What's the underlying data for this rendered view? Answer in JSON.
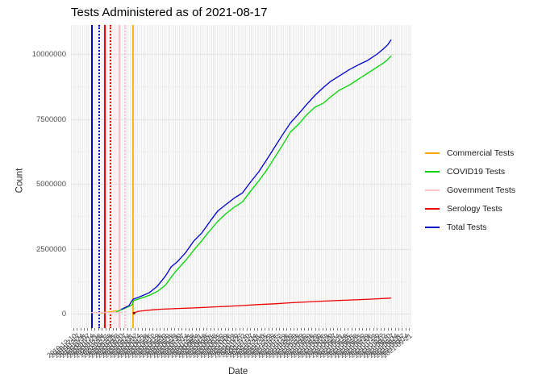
{
  "title": "Tests Administered as of 2021-08-17",
  "x_axis": {
    "label": "Date",
    "tick_labels": [
      "2019-12-10",
      "2019-12-17",
      "2019-12-24",
      "2019-12-31",
      "2020-01-07",
      "2020-01-14",
      "2020-01-21",
      "2020-01-28",
      "2020-02-04",
      "2020-02-11",
      "2020-02-18",
      "2020-02-25",
      "2020-03-03",
      "2020-03-10",
      "2020-03-17",
      "2020-03-24",
      "2020-03-31",
      "2020-04-07",
      "2020-04-14",
      "2020-04-21",
      "2020-04-28",
      "2020-05-05",
      "2020-05-12",
      "2020-05-19",
      "2020-05-26",
      "2020-06-02",
      "2020-06-09",
      "2020-06-16",
      "2020-06-23",
      "2020-06-30",
      "2020-07-07",
      "2020-07-14",
      "2020-07-21",
      "2020-07-28",
      "2020-08-04",
      "2020-08-11",
      "2020-08-18",
      "2020-08-25",
      "2020-09-01",
      "2020-09-08",
      "2020-09-15",
      "2020-09-22",
      "2020-09-29",
      "2020-10-06",
      "2020-10-13",
      "2020-10-20",
      "2020-10-27",
      "2020-11-03",
      "2020-11-10",
      "2020-11-17",
      "2020-11-24",
      "2020-12-01",
      "2020-12-08",
      "2020-12-15",
      "2020-12-22",
      "2020-12-29",
      "2021-01-05",
      "2021-01-12",
      "2021-01-19",
      "2021-01-26",
      "2021-02-02",
      "2021-02-09",
      "2021-02-16",
      "2021-02-23",
      "2021-03-02",
      "2021-03-09",
      "2021-03-16",
      "2021-03-23",
      "2021-03-30",
      "2021-04-06",
      "2021-04-13",
      "2021-04-20",
      "2021-04-27",
      "2021-05-04",
      "2021-05-11",
      "2021-05-18",
      "2021-05-25",
      "2021-06-01",
      "2021-06-08",
      "2021-06-15",
      "2021-06-22",
      "2021-06-29",
      "2021-07-06",
      "2021-07-13",
      "2021-07-20",
      "2021-07-27",
      "2021-08-03",
      "2021-08-10",
      "2021-08-17",
      "2021-08-24",
      "2021-08-31",
      "2021-09-07",
      "2021-09-14",
      "2021-09-21"
    ]
  },
  "y_axis": {
    "label": "Count",
    "tick_labels": [
      "0",
      "2500000",
      "5000000",
      "7500000",
      "10000000"
    ],
    "tick_values": [
      0,
      2500000,
      5000000,
      7500000,
      10000000
    ]
  },
  "legend": {
    "items": [
      {
        "label": "Commercial Tests",
        "color": "#FFA500"
      },
      {
        "label": "COVID19 Tests",
        "color": "#00D400"
      },
      {
        "label": "Government Tests",
        "color": "#FFC0CB"
      },
      {
        "label": "Serology Tests",
        "color": "#EE0000"
      },
      {
        "label": "Total Tests",
        "color": "#0000CD"
      }
    ]
  },
  "chart_data": {
    "type": "line",
    "title": "Tests Administered as of 2021-08-17",
    "xlabel": "Date",
    "ylabel": "Count",
    "x_domain": [
      "2019-12-06",
      "2021-09-25"
    ],
    "ylim": [
      0,
      11100000
    ],
    "grid": true,
    "legend_position": "right",
    "series": [
      {
        "name": "Commercial Tests",
        "color": "#FFA500",
        "points": [
          [
            "2020-02-02",
            20000
          ],
          [
            "2020-02-12",
            50000
          ],
          [
            "2020-02-22",
            80000
          ],
          [
            "2020-03-04",
            120000
          ]
        ]
      },
      {
        "name": "COVID19 Tests",
        "color": "#00D400",
        "points": [
          [
            "2020-03-01",
            50000
          ],
          [
            "2020-03-12",
            150000
          ],
          [
            "2020-03-22",
            230000
          ],
          [
            "2020-03-30",
            300000
          ],
          [
            "2020-04-03",
            350000
          ],
          [
            "2020-04-05",
            500000
          ],
          [
            "2020-04-20",
            600000
          ],
          [
            "2020-05-05",
            700000
          ],
          [
            "2020-05-21",
            850000
          ],
          [
            "2020-06-06",
            1100000
          ],
          [
            "2020-06-17",
            1400000
          ],
          [
            "2020-06-29",
            1700000
          ],
          [
            "2020-07-15",
            2050000
          ],
          [
            "2020-07-31",
            2450000
          ],
          [
            "2020-08-15",
            2800000
          ],
          [
            "2020-08-31",
            3200000
          ],
          [
            "2020-09-15",
            3550000
          ],
          [
            "2020-10-01",
            3850000
          ],
          [
            "2020-10-17",
            4100000
          ],
          [
            "2020-11-02",
            4300000
          ],
          [
            "2020-11-17",
            4700000
          ],
          [
            "2020-12-03",
            5100000
          ],
          [
            "2020-12-18",
            5500000
          ],
          [
            "2021-01-03",
            6000000
          ],
          [
            "2021-01-19",
            6500000
          ],
          [
            "2021-02-03",
            7000000
          ],
          [
            "2021-02-19",
            7300000
          ],
          [
            "2021-03-06",
            7650000
          ],
          [
            "2021-03-22",
            7950000
          ],
          [
            "2021-04-07",
            8100000
          ],
          [
            "2021-04-22",
            8350000
          ],
          [
            "2021-05-08",
            8600000
          ],
          [
            "2021-05-28",
            8800000
          ],
          [
            "2021-06-16",
            9050000
          ],
          [
            "2021-07-02",
            9250000
          ],
          [
            "2021-07-21",
            9500000
          ],
          [
            "2021-08-02",
            9650000
          ],
          [
            "2021-08-10",
            9780000
          ],
          [
            "2021-08-17",
            9930000
          ]
        ]
      },
      {
        "name": "Government Tests",
        "color": "#FFC0CB",
        "points": [
          [
            "2020-01-14",
            40000
          ],
          [
            "2020-03-15",
            50000
          ]
        ]
      },
      {
        "name": "Serology Tests",
        "color": "#EE0000",
        "points": [
          [
            "2020-04-06",
            20000
          ],
          [
            "2020-04-12",
            80000
          ],
          [
            "2020-04-28",
            120000
          ],
          [
            "2020-05-14",
            150000
          ],
          [
            "2020-05-29",
            170000
          ],
          [
            "2020-06-30",
            200000
          ],
          [
            "2020-08-01",
            220000
          ],
          [
            "2020-09-01",
            250000
          ],
          [
            "2020-10-02",
            280000
          ],
          [
            "2020-11-02",
            310000
          ],
          [
            "2020-12-04",
            350000
          ],
          [
            "2021-01-04",
            380000
          ],
          [
            "2021-02-04",
            420000
          ],
          [
            "2021-03-07",
            450000
          ],
          [
            "2021-04-07",
            480000
          ],
          [
            "2021-05-09",
            510000
          ],
          [
            "2021-06-09",
            530000
          ],
          [
            "2021-07-10",
            560000
          ],
          [
            "2021-08-17",
            600000
          ]
        ]
      },
      {
        "name": "Total Tests",
        "color": "#0000CD",
        "points": [
          [
            "2020-03-12",
            160000
          ],
          [
            "2020-03-27",
            300000
          ],
          [
            "2020-04-04",
            550000
          ],
          [
            "2020-04-20",
            670000
          ],
          [
            "2020-05-05",
            800000
          ],
          [
            "2020-05-21",
            1050000
          ],
          [
            "2020-06-06",
            1450000
          ],
          [
            "2020-06-17",
            1800000
          ],
          [
            "2020-06-29",
            2000000
          ],
          [
            "2020-07-15",
            2350000
          ],
          [
            "2020-07-31",
            2800000
          ],
          [
            "2020-08-15",
            3100000
          ],
          [
            "2020-08-31",
            3550000
          ],
          [
            "2020-09-15",
            3950000
          ],
          [
            "2020-10-01",
            4200000
          ],
          [
            "2020-10-17",
            4450000
          ],
          [
            "2020-11-02",
            4650000
          ],
          [
            "2020-11-17",
            5050000
          ],
          [
            "2020-12-03",
            5450000
          ],
          [
            "2020-12-18",
            5900000
          ],
          [
            "2021-01-03",
            6400000
          ],
          [
            "2021-01-19",
            6900000
          ],
          [
            "2021-02-03",
            7350000
          ],
          [
            "2021-02-19",
            7700000
          ],
          [
            "2021-03-06",
            8050000
          ],
          [
            "2021-03-22",
            8400000
          ],
          [
            "2021-04-07",
            8700000
          ],
          [
            "2021-04-22",
            8950000
          ],
          [
            "2021-05-08",
            9150000
          ],
          [
            "2021-05-28",
            9400000
          ],
          [
            "2021-06-16",
            9600000
          ],
          [
            "2021-07-02",
            9750000
          ],
          [
            "2021-07-21",
            10000000
          ],
          [
            "2021-08-02",
            10200000
          ],
          [
            "2021-08-10",
            10350000
          ],
          [
            "2021-08-17",
            10550000
          ]
        ]
      }
    ],
    "vlines": [
      {
        "date": "2020-01-15",
        "color": "#0000CD",
        "style": "solid"
      },
      {
        "date": "2020-01-30",
        "color": "#0000CD",
        "style": "dotted"
      },
      {
        "date": "2020-02-09",
        "color": "#EE0000",
        "style": "solid"
      },
      {
        "date": "2020-02-21",
        "color": "#EE0000",
        "style": "dotted"
      },
      {
        "date": "2020-03-09",
        "color": "#FFC0CB",
        "style": "solid"
      },
      {
        "date": "2020-03-20",
        "color": "#FFC0CB",
        "style": "dotted"
      },
      {
        "date": "2020-04-05",
        "color": "#FFB90F",
        "style": "solid"
      }
    ]
  }
}
